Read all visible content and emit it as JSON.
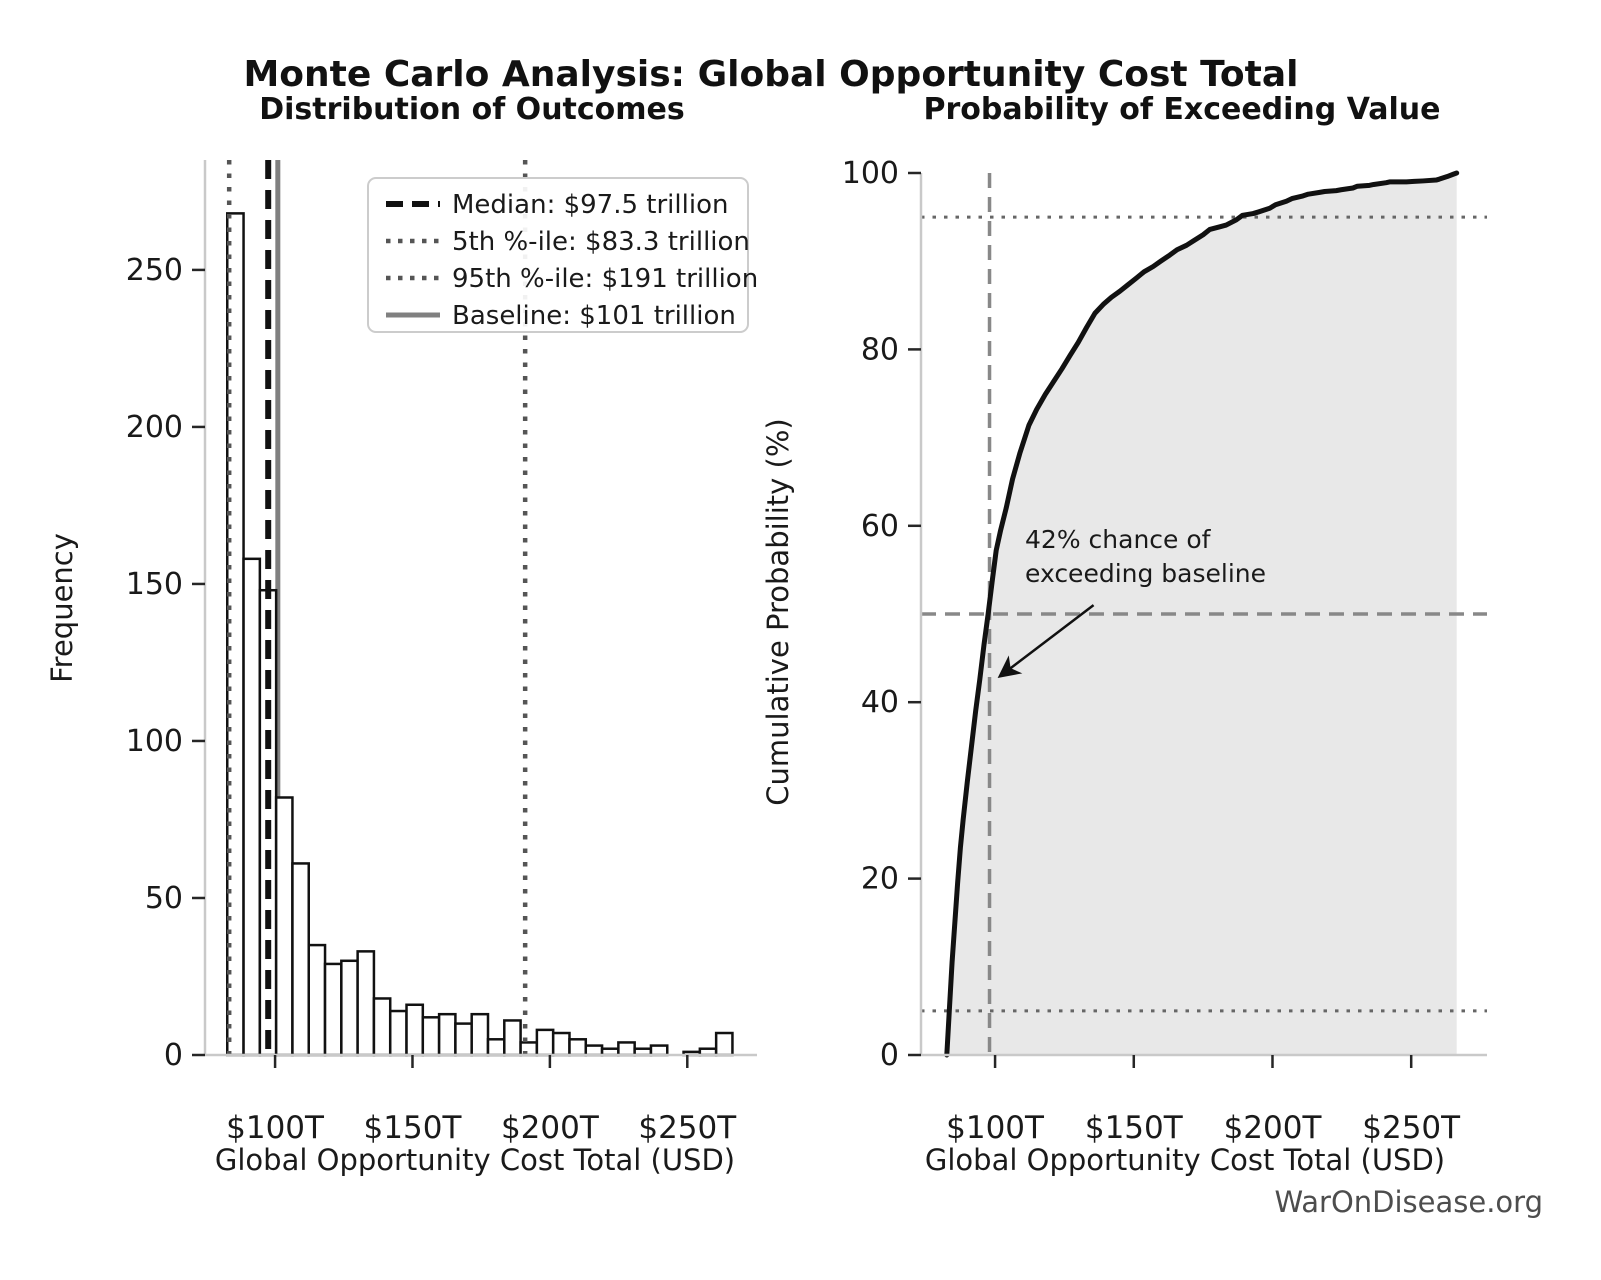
{
  "header": {
    "title": "Monte Carlo Analysis: Global Opportunity Cost Total"
  },
  "watermark": "WarOnDisease.org",
  "colors": {
    "bar_fill": "#ffffff",
    "bar_edge": "#111111",
    "curve": "#111111",
    "cdf_fill": "#e8e8e8",
    "median_line": "#111111",
    "percentile_line": "#555555",
    "baseline_line": "#808080",
    "ref_gray_dashed": "#888888",
    "ref_gray_dotted": "#666666",
    "spine": "#c9c9c9",
    "tick": "#262626"
  },
  "chart_data": [
    {
      "type": "bar",
      "subtype": "histogram",
      "title": "Distribution of Outcomes",
      "xlabel": "Global Opportunity Cost Total (USD)",
      "ylabel": "Frequency",
      "xlim": [
        74.5,
        271
      ],
      "ylim": [
        0,
        285
      ],
      "bin_start_trillion": 82.6,
      "bin_width_trillion": 5.93,
      "counts": [
        268,
        158,
        148,
        82,
        61,
        35,
        29,
        30,
        33,
        18,
        14,
        16,
        12,
        13,
        10,
        13,
        5,
        11,
        4,
        8,
        7,
        5,
        3,
        2,
        4,
        2,
        3,
        0,
        1,
        2,
        7
      ],
      "x_ticks": [
        {
          "value": 100,
          "label": "$100T"
        },
        {
          "value": 150,
          "label": "$150T"
        },
        {
          "value": 200,
          "label": "$200T"
        },
        {
          "value": 250,
          "label": "$250T"
        }
      ],
      "y_ticks": [
        0,
        50,
        100,
        150,
        200,
        250
      ],
      "ref_lines": [
        {
          "name": "median",
          "x": 97.5,
          "style": "dashed-bold",
          "label": "Median: $97.5 trillion"
        },
        {
          "name": "p5",
          "x": 83.3,
          "style": "dotted",
          "label": "5th %-ile: $83.3 trillion"
        },
        {
          "name": "p95",
          "x": 191,
          "style": "dotted",
          "label": "95th %-ile: $191 trillion"
        },
        {
          "name": "baseline",
          "x": 101,
          "style": "solid-gray",
          "label": "Baseline: $101 trillion"
        }
      ],
      "legend_position": "upper right"
    },
    {
      "type": "line",
      "subtype": "cdf",
      "title": "Probability of Exceeding Value",
      "xlabel": "Global Opportunity Cost Total (USD)",
      "ylabel": "Cumulative Probability (%)",
      "xlim": [
        73.3,
        273
      ],
      "ylim": [
        0,
        100
      ],
      "x_ticks": [
        {
          "value": 100,
          "label": "$100T"
        },
        {
          "value": 150,
          "label": "$150T"
        },
        {
          "value": 200,
          "label": "$200T"
        },
        {
          "value": 250,
          "label": "$250T"
        }
      ],
      "y_ticks": [
        0,
        20,
        40,
        60,
        80,
        100
      ],
      "curve": {
        "x": [
          82.6,
          83.5,
          84.5,
          85.5,
          86.5,
          87.5,
          88.5,
          90,
          91.5,
          93,
          94.5,
          96,
          97.5,
          99,
          100.4,
          102,
          104,
          106.3,
          109,
          112.2,
          115,
          118.1,
          121,
          124.1,
          127,
          130,
          133,
          136,
          139,
          141.9,
          145,
          147.8,
          151,
          153.7,
          157,
          159.7,
          163,
          165.6,
          169,
          171.5,
          175,
          177.4,
          181,
          183.3,
          187,
          189.2,
          193,
          195.1,
          199,
          201.1,
          205,
          207,
          211,
          212.9,
          217,
          218.8,
          223,
          224.7,
          229,
          230.6,
          235,
          236.5,
          241,
          242.4,
          248.3,
          251,
          254.2,
          259,
          260.1,
          263,
          265.5,
          266.4
        ],
        "y": [
          0,
          5,
          10.5,
          15,
          19.5,
          23.5,
          26.7,
          31,
          35,
          39,
          42.6,
          46.5,
          50,
          53.8,
          57.2,
          59.5,
          62,
          65.3,
          68.3,
          71.4,
          73.2,
          74.9,
          76.3,
          77.8,
          79.3,
          80.8,
          82.5,
          84.1,
          85.1,
          85.9,
          86.6,
          87.3,
          88.1,
          88.8,
          89.4,
          90,
          90.7,
          91.3,
          91.8,
          92.3,
          93,
          93.6,
          93.9,
          94.1,
          94.7,
          95.2,
          95.4,
          95.6,
          96,
          96.4,
          96.8,
          97.1,
          97.4,
          97.6,
          97.8,
          97.9,
          98,
          98.1,
          98.3,
          98.5,
          98.6,
          98.7,
          98.9,
          99,
          99,
          99.05,
          99.1,
          99.2,
          99.3,
          99.6,
          99.9,
          100
        ]
      },
      "h_lines": [
        {
          "y": 95,
          "style": "dotted-gray"
        },
        {
          "y": 50,
          "style": "dashed-gray"
        },
        {
          "y": 5,
          "style": "dotted-gray"
        }
      ],
      "v_lines": [
        {
          "x": 98,
          "style": "dashed-gray"
        }
      ],
      "annotation": {
        "line1": "42% chance of",
        "line2": "exceeding baseline",
        "text_x": 110.8,
        "text_y": 57.5,
        "arrow_from": [
          135.5,
          51
        ],
        "arrow_to": [
          102,
          43
        ]
      }
    }
  ]
}
